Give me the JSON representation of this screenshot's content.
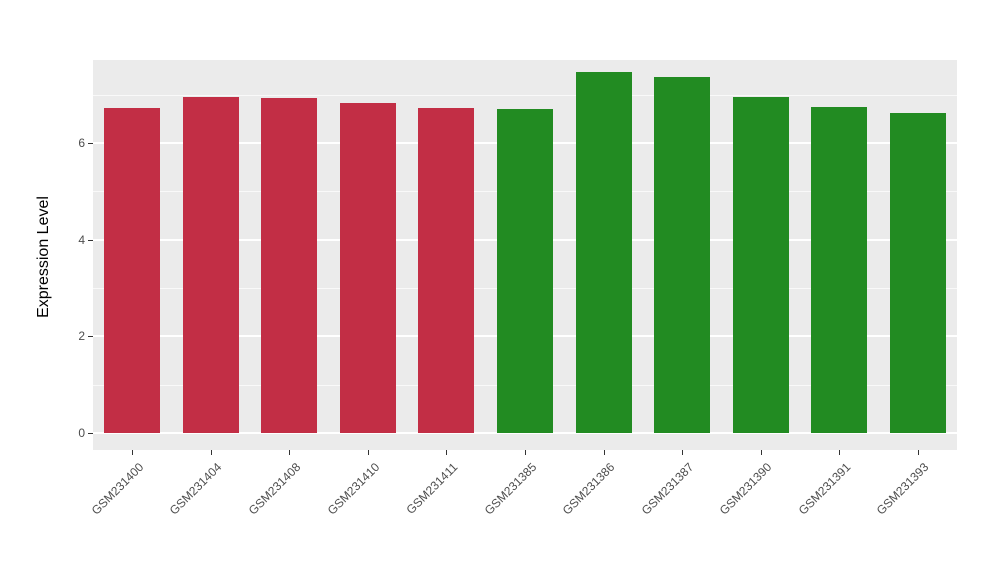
{
  "chart_data": {
    "type": "bar",
    "title": "",
    "xlabel": "",
    "ylabel": "Expression Level",
    "categories": [
      "GSM231400",
      "GSM231404",
      "GSM231408",
      "GSM231410",
      "GSM231411",
      "GSM231385",
      "GSM231386",
      "GSM231387",
      "GSM231390",
      "GSM231391",
      "GSM231393"
    ],
    "values": [
      6.73,
      6.96,
      6.93,
      6.83,
      6.73,
      6.71,
      7.47,
      7.37,
      6.96,
      6.75,
      6.62
    ],
    "bar_colors": [
      "#C22E45",
      "#C22E45",
      "#C22E45",
      "#C22E45",
      "#C22E45",
      "#228B22",
      "#228B22",
      "#228B22",
      "#228B22",
      "#228B22",
      "#228B22"
    ],
    "group_colors": {
      "red_group": "#C22E45",
      "green_group": "#228B22"
    },
    "ylim": [
      0,
      7.72
    ],
    "yticks": [
      0,
      2,
      4,
      6
    ],
    "ytick_labels": [
      "0",
      "2",
      "4",
      "6"
    ],
    "minor_gridlines": [
      1,
      3,
      5,
      7
    ],
    "grid": "on",
    "legend": "none",
    "panel_background": "#EBEBEB",
    "gridline_color": "#FFFFFF",
    "tick_label_color": "#4D4D4D"
  }
}
